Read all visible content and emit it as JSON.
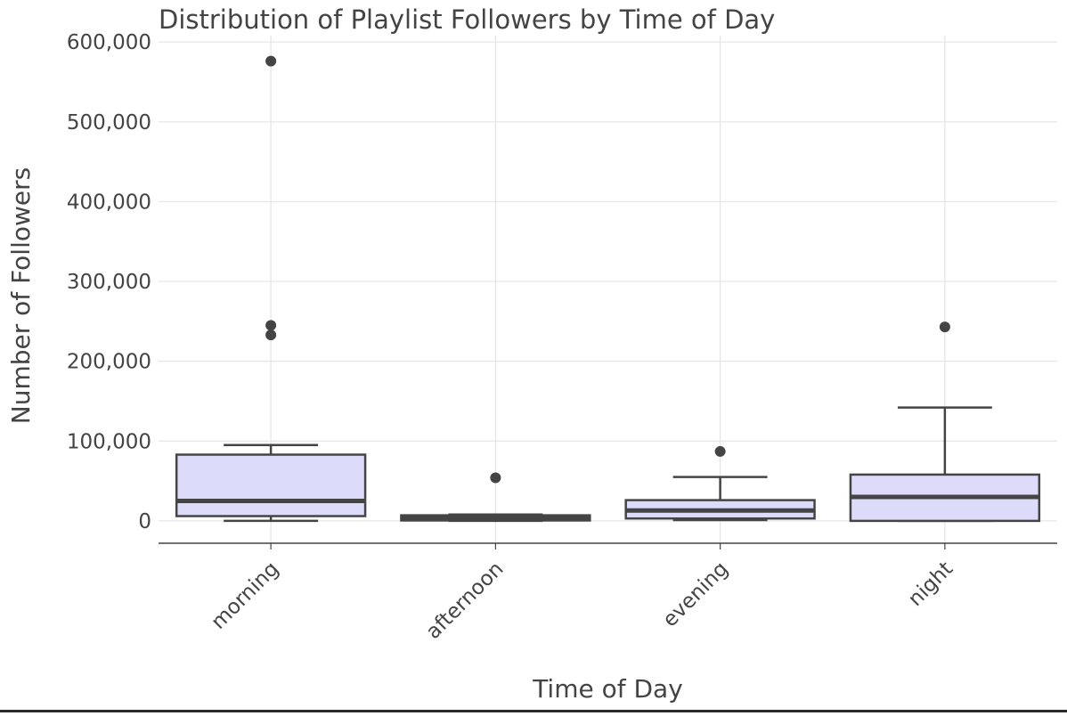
{
  "chart_data": {
    "type": "box",
    "title": "Distribution of Playlist Followers by Time of Day",
    "xlabel": "Time of Day",
    "ylabel": "Number of Followers",
    "categories": [
      "morning",
      "afternoon",
      "evening",
      "night"
    ],
    "y_ticks": [
      0,
      100000,
      200000,
      300000,
      400000,
      500000,
      600000
    ],
    "y_tick_labels": [
      "0",
      "100,000",
      "200,000",
      "300,000",
      "400,000",
      "500,000",
      "600,000"
    ],
    "ylim": [
      -28000,
      608000
    ],
    "grid": true,
    "legend": "none",
    "boxes": [
      {
        "category": "morning",
        "min": 0,
        "q1": 6000,
        "median": 25000,
        "q3": 83000,
        "max": 95000,
        "outliers": [
          576000,
          245000,
          233000
        ]
      },
      {
        "category": "afternoon",
        "min": 0,
        "q1": 500,
        "median": 4000,
        "q3": 7000,
        "max": 8000,
        "outliers": [
          54000
        ]
      },
      {
        "category": "evening",
        "min": 1000,
        "q1": 3000,
        "median": 13000,
        "q3": 26000,
        "max": 55000,
        "outliers": [
          87000
        ]
      },
      {
        "category": "night",
        "min": 0,
        "q1": 0,
        "median": 30000,
        "q3": 58000,
        "max": 142000,
        "outliers": [
          243000
        ]
      }
    ],
    "colors": {
      "box_fill": "#dcdcfa",
      "box_line": "#444444",
      "outlier": "#444444",
      "grid": "#e5e5e5",
      "axis": "#444444",
      "text": "#444444"
    }
  }
}
